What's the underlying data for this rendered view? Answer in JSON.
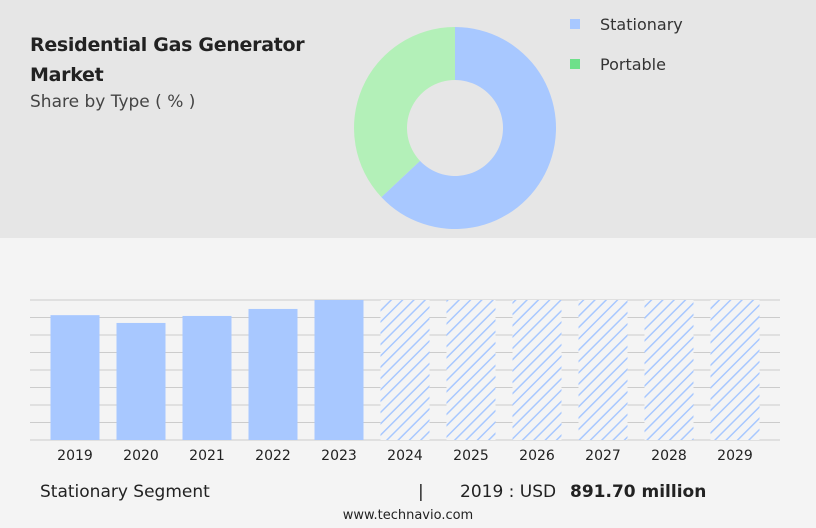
{
  "chart_data": [
    {
      "type": "pie",
      "title": "Residential Gas Generator Market",
      "subtitle": "Share by Type ( % )",
      "categories": [
        "Stationary",
        "Portable"
      ],
      "values": [
        63,
        37
      ],
      "colors": [
        "#a8c8ff",
        "#b3f0b8"
      ],
      "legend_colors": [
        "#a8c8ff",
        "#6ee08a"
      ],
      "donut": true
    },
    {
      "type": "bar",
      "categories": [
        "2019",
        "2020",
        "2021",
        "2022",
        "2023",
        "2024",
        "2025",
        "2026",
        "2027",
        "2028",
        "2029"
      ],
      "values": [
        891.7,
        836,
        886,
        936,
        1000,
        null,
        null,
        null,
        null,
        null,
        null
      ],
      "color": "#a8c8ff",
      "ylim": [
        0,
        1000
      ],
      "yticks": [
        0,
        125,
        250,
        375,
        500,
        625,
        750,
        875,
        1000
      ],
      "grid": true
    }
  ],
  "footer": {
    "segment": "Stationary Segment",
    "divider": "|",
    "year": "2019 : USD",
    "value": "891.70 million",
    "source": "www.technavio.com"
  }
}
